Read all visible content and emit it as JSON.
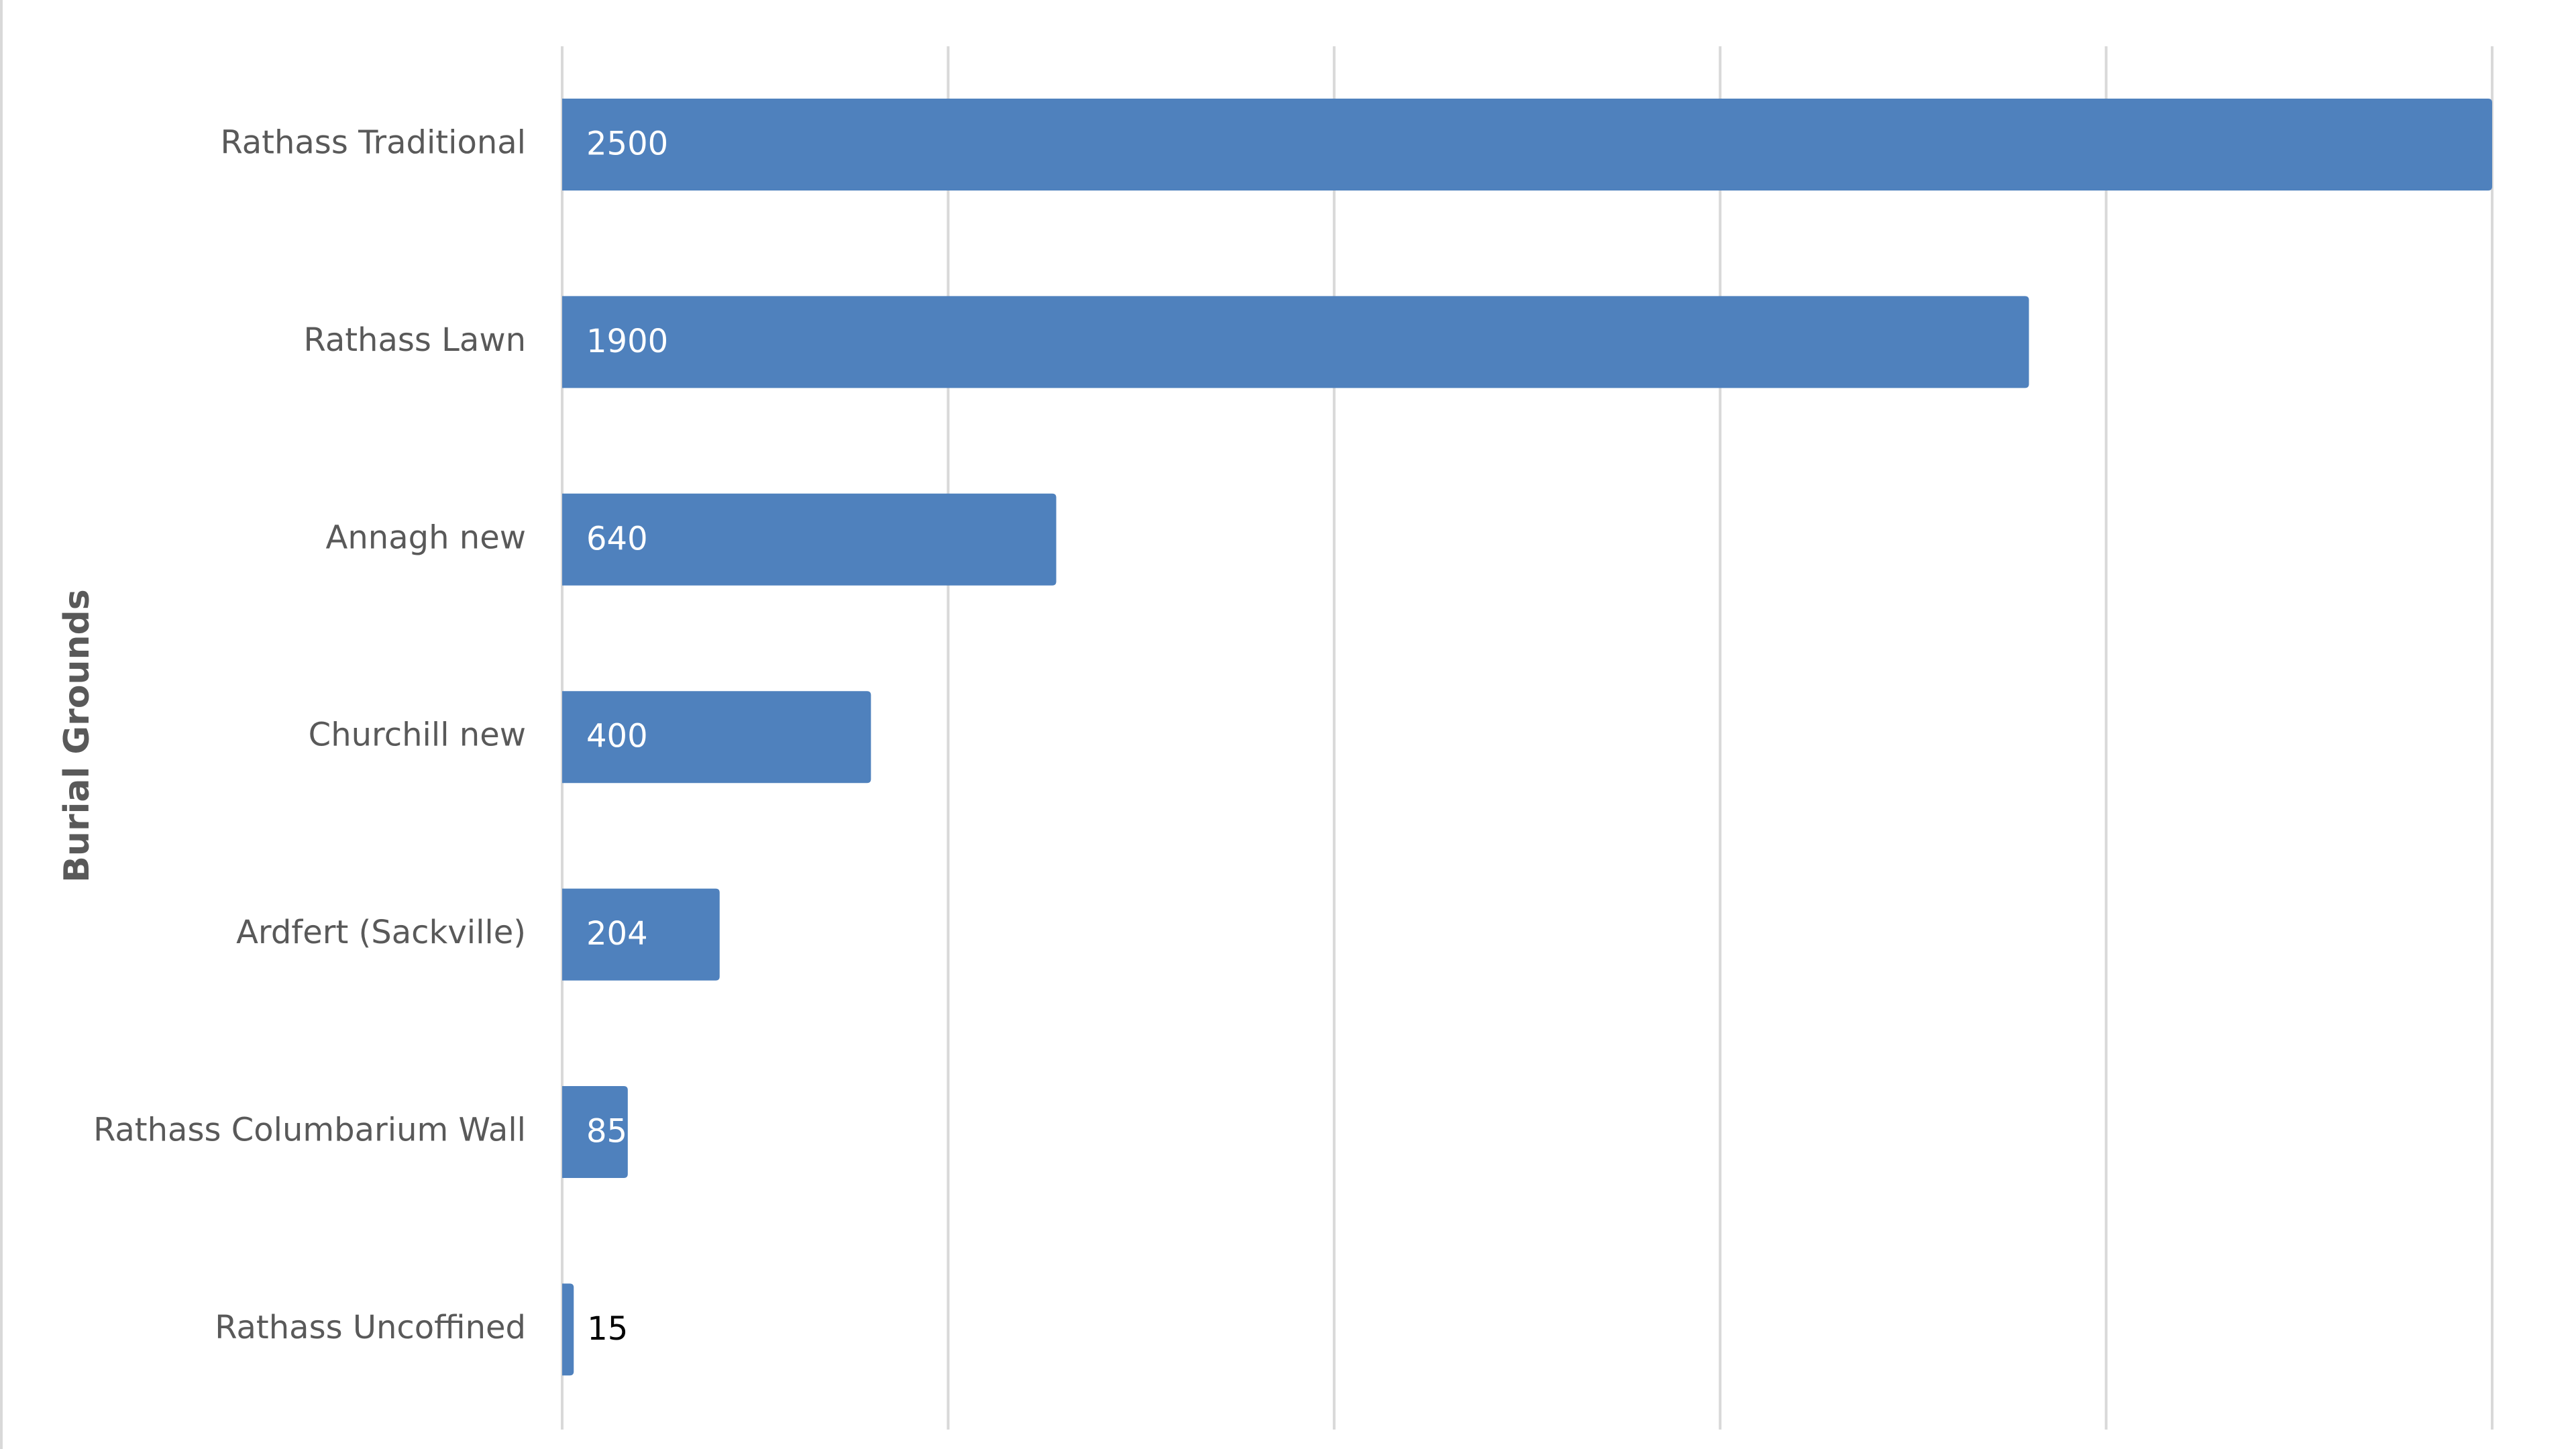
{
  "chart_data": {
    "type": "bar",
    "orientation": "horizontal",
    "y_label": "Burial Grounds",
    "categories": [
      "Rathass Traditional",
      "Rathass Lawn",
      "Annagh new",
      "Churchill new",
      "Ardfert (Sackville)",
      "Rathass Columbarium Wall",
      "Rathass Uncoffined"
    ],
    "values": [
      2500,
      1900,
      640,
      400,
      204,
      85,
      15
    ],
    "color": "#4f81bd",
    "xlim": [
      0,
      2500
    ],
    "xticks": [
      0,
      500,
      1000,
      1500,
      2000,
      2500
    ],
    "grid": true
  }
}
